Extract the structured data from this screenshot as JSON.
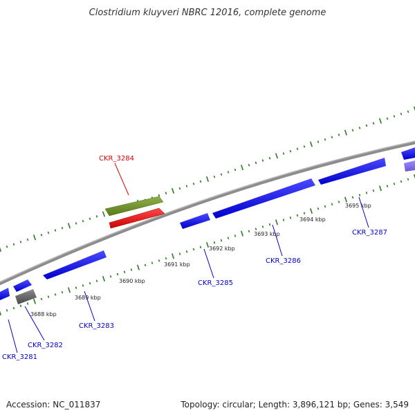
{
  "title": "Clostridium kluyveri NBRC 12016, complete genome",
  "footer": {
    "accession": "Accession: NC_011837",
    "summary": "Topology: circular; Length: 3,896,121 bp; Genes: 3,549"
  },
  "colors": {
    "backbone": "#8c8c8c",
    "tick": "#2a7a1e",
    "gene_forward": "#0000ee",
    "gene_reverse": "#0000ee",
    "gene_selected": "#ee0000",
    "gene_green": "#6b8e23",
    "gene_gray": "#666666",
    "gene_purple": "#7b68ee",
    "label_blue": "#0000cc",
    "label_red": "#dd0000"
  },
  "scale_labels": [
    "3688 kbp",
    "3689 kbp",
    "3690 kbp",
    "3691 kbp",
    "3692 kbp",
    "3693 kbp",
    "3694 kbp",
    "3695 kbp"
  ],
  "gene_labels": [
    {
      "text": "CKR_3281",
      "color": "label_blue"
    },
    {
      "text": "CKR_3282",
      "color": "label_blue"
    },
    {
      "text": "CKR_3283",
      "color": "label_blue"
    },
    {
      "text": "CKR_3284",
      "color": "label_red"
    },
    {
      "text": "CKR_3285",
      "color": "label_blue"
    },
    {
      "text": "CKR_3286",
      "color": "label_blue"
    },
    {
      "text": "CKR_3287",
      "color": "label_blue"
    }
  ]
}
